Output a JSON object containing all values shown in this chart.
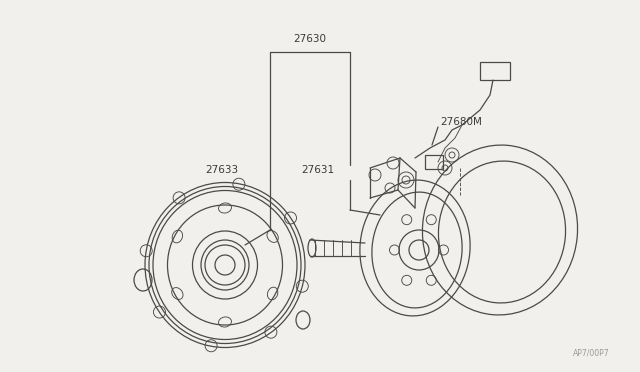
{
  "bg_color": "#f2f0ec",
  "line_color": "#4a4a4a",
  "label_color": "#3a3a3a",
  "watermark": "AP7/00P7",
  "figsize": [
    6.4,
    3.72
  ],
  "dpi": 100,
  "font_size": 7.5
}
